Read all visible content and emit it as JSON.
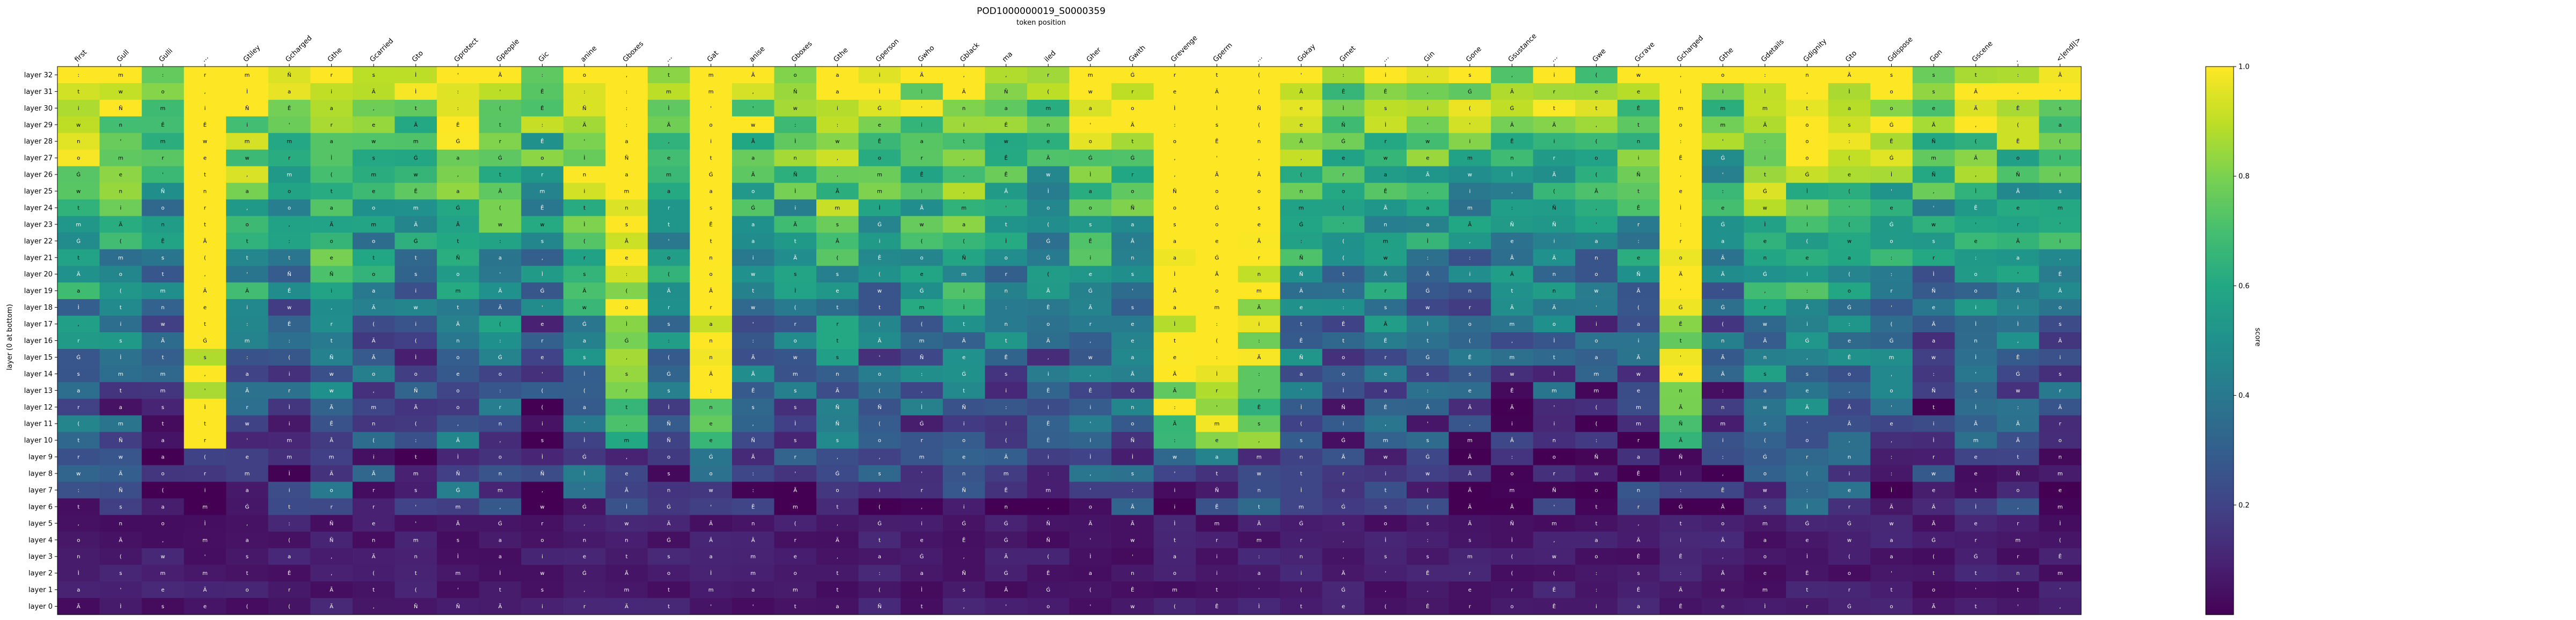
{
  "chart_data": {
    "type": "heatmap",
    "title": "POD1000000019_S0000359",
    "subtitle": "token position",
    "ylabel": "layer (0 at bottom)",
    "colorbar_label": "score",
    "colorbar_range": [
      0,
      1
    ],
    "colorbar_ticks": [
      "0.2",
      "0.4",
      "0.6",
      "0.8",
      "1.0"
    ],
    "colormap": "viridis",
    "x_tokens": [
      "first",
      "Gull",
      "Gulli",
      "...",
      "Gtiley",
      "Gcharged",
      "Gthe",
      "Gcarried",
      "Gto",
      "Gprotect",
      "Gpeople",
      "Gic",
      "anine",
      "Gboxes",
      "...",
      "Gat",
      "anise",
      "Gboxes",
      "Gthe",
      "Gperson",
      "Gwho",
      "Gblack",
      "ma",
      "iled",
      "Gher",
      "Gwith",
      "Grevenge",
      "Gperm",
      "...",
      "Gokay",
      "Gmet",
      "...",
      "Gin",
      "Gone",
      "Gsustance",
      "...",
      "Gwe",
      "Gcrave",
      "Gcharged",
      "Gthe",
      "Gdetails",
      "Gdignity",
      "Gto",
      "Gdispose",
      "Gon",
      "Gscene",
      ".",
      "<|endl|>"
    ],
    "y_layers": [
      "layer 0",
      "layer 1",
      "layer 2",
      "layer 3",
      "layer 4",
      "layer 5",
      "layer 6",
      "layer 7",
      "layer 8",
      "layer 9",
      "layer 10",
      "layer 11",
      "layer 12",
      "layer 13",
      "layer 14",
      "layer 15",
      "layer 16",
      "layer 17",
      "layer 18",
      "layer 19",
      "layer 20",
      "layer 21",
      "layer 22",
      "layer 23",
      "layer 24",
      "layer 25",
      "layer 26",
      "layer 27",
      "layer 28",
      "layer 29",
      "layer 30",
      "layer 31",
      "layer 32"
    ],
    "cell_glyph_pool": [
      "a",
      "e",
      "s",
      "t",
      "i",
      "o",
      "m",
      "w",
      "r",
      "n",
      "Ä",
      "Ġ",
      "Ã",
      "Ê",
      "Ì",
      "Ñ",
      "'",
      "(",
      ":",
      ","
    ]
  }
}
